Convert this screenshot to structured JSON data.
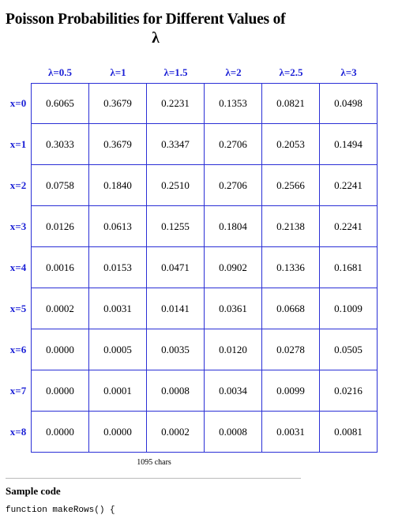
{
  "title": {
    "line1": "Poisson Probabilities for Different Values of",
    "line2": "λ"
  },
  "table": {
    "columns": [
      "λ=0.5",
      "λ=1",
      "λ=1.5",
      "λ=2",
      "λ=2.5",
      "λ=3"
    ],
    "rows": [
      {
        "label": "x=0",
        "values": [
          "0.6065",
          "0.3679",
          "0.2231",
          "0.1353",
          "0.0821",
          "0.0498"
        ]
      },
      {
        "label": "x=1",
        "values": [
          "0.3033",
          "0.3679",
          "0.3347",
          "0.2706",
          "0.2053",
          "0.1494"
        ]
      },
      {
        "label": "x=2",
        "values": [
          "0.0758",
          "0.1840",
          "0.2510",
          "0.2706",
          "0.2566",
          "0.2241"
        ]
      },
      {
        "label": "x=3",
        "values": [
          "0.0126",
          "0.0613",
          "0.1255",
          "0.1804",
          "0.2138",
          "0.2241"
        ]
      },
      {
        "label": "x=4",
        "values": [
          "0.0016",
          "0.0153",
          "0.0471",
          "0.0902",
          "0.1336",
          "0.1681"
        ]
      },
      {
        "label": "x=5",
        "values": [
          "0.0002",
          "0.0031",
          "0.0141",
          "0.0361",
          "0.0668",
          "0.1009"
        ]
      },
      {
        "label": "x=6",
        "values": [
          "0.0000",
          "0.0005",
          "0.0035",
          "0.0120",
          "0.0278",
          "0.0505"
        ]
      },
      {
        "label": "x=7",
        "values": [
          "0.0000",
          "0.0001",
          "0.0008",
          "0.0034",
          "0.0099",
          "0.0216"
        ]
      },
      {
        "label": "x=8",
        "values": [
          "0.0000",
          "0.0000",
          "0.0002",
          "0.0008",
          "0.0031",
          "0.0081"
        ]
      }
    ]
  },
  "char_count": "1095 chars",
  "sample_code": {
    "heading": "Sample code",
    "first_line": "function makeRows() {"
  },
  "colors": {
    "header_text": "#1a1fd6",
    "cell_border": "#2a2fd6"
  }
}
